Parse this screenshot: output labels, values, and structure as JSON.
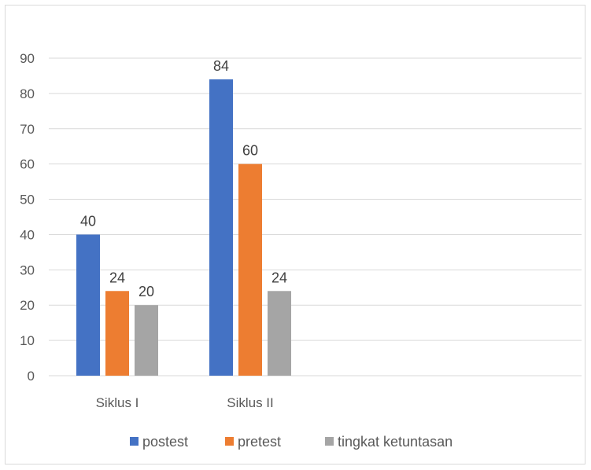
{
  "chart_data": {
    "type": "bar",
    "categories": [
      "Siklus I",
      "Siklus II"
    ],
    "series": [
      {
        "name": "postest",
        "values": [
          40,
          84
        ],
        "color": "#4472C4"
      },
      {
        "name": "pretest",
        "values": [
          24,
          60
        ],
        "color": "#ED7D31"
      },
      {
        "name": "tingkat ketuntasan",
        "values": [
          20,
          24
        ],
        "color": "#A5A5A5"
      }
    ],
    "ylim": [
      0,
      90
    ],
    "yticks": [
      "0",
      "10",
      "20",
      "30",
      "40",
      "50",
      "60",
      "70",
      "80",
      "90"
    ],
    "grid": true,
    "legend_position": "bottom",
    "title": "",
    "xlabel": "",
    "ylabel": ""
  }
}
